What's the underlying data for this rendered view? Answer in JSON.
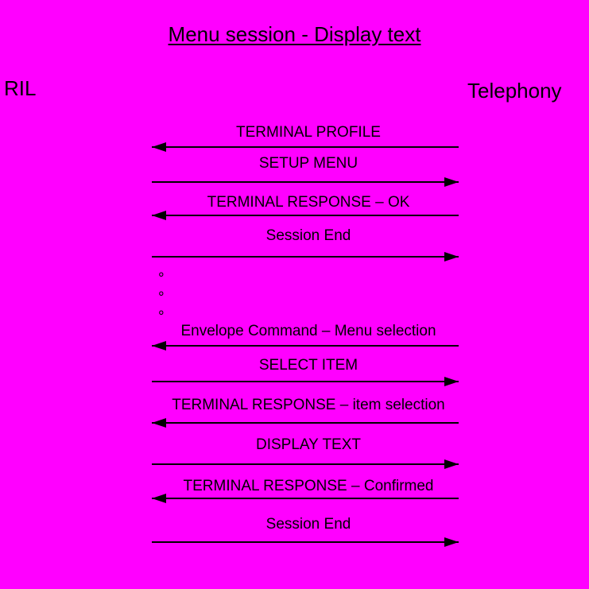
{
  "diagram": {
    "title": "Menu session - Display text",
    "actors": {
      "left": "RIL",
      "right": "Telephony"
    },
    "colors": {
      "background": "#FF00FF",
      "text": "#000000",
      "line": "#000000"
    },
    "continuation_dots": {
      "symbol": "°",
      "count": 3
    },
    "messages": [
      {
        "label": "TERMINAL PROFILE",
        "direction": "left"
      },
      {
        "label": "SETUP MENU",
        "direction": "right"
      },
      {
        "label": "TERMINAL RESPONSE – OK",
        "direction": "left"
      },
      {
        "label": "Session End",
        "direction": "right"
      },
      {
        "label": "Envelope Command – Menu selection",
        "direction": "left"
      },
      {
        "label": "SELECT ITEM",
        "direction": "right"
      },
      {
        "label": "TERMINAL RESPONSE – item selection",
        "direction": "left"
      },
      {
        "label": "DISPLAY TEXT",
        "direction": "right"
      },
      {
        "label": "TERMINAL RESPONSE – Confirmed",
        "direction": "left"
      },
      {
        "label": "Session End",
        "direction": "right"
      }
    ]
  }
}
